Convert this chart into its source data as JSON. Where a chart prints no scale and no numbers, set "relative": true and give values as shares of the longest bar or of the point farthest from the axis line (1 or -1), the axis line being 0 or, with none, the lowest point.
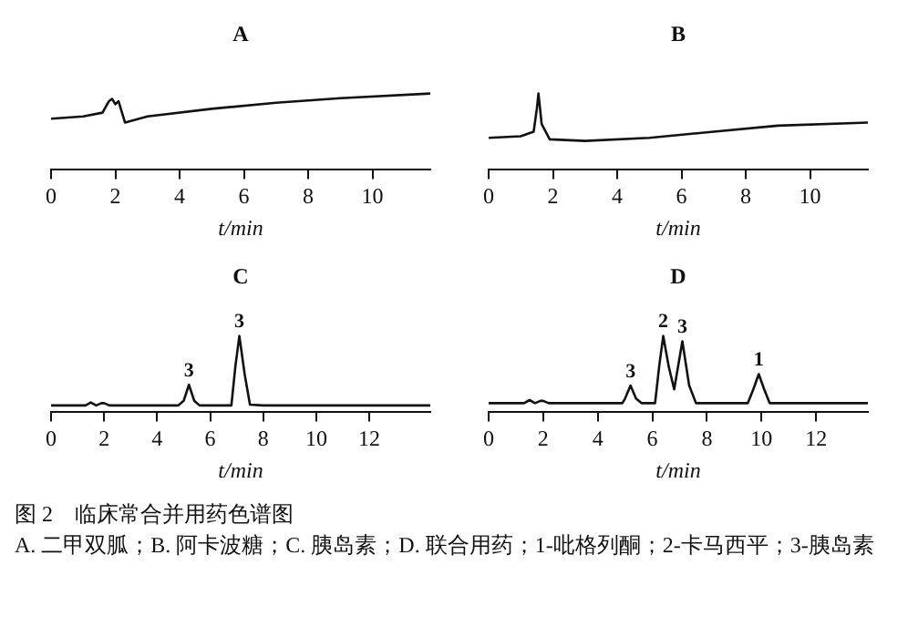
{
  "chart_data": [
    {
      "type": "line",
      "title": "A",
      "xlabel": "t/min",
      "relative": true,
      "marker": "none",
      "grid": false,
      "legend": false,
      "tick_labels": "x",
      "xlim": [
        0,
        11.8
      ],
      "xticks": [
        0,
        2,
        4,
        6,
        8,
        10
      ],
      "series": [
        {
          "color": "#111111",
          "x": [
            0,
            1.0,
            1.6,
            1.8,
            1.9,
            2.0,
            2.1,
            2.3,
            3.0,
            5.0,
            7.0,
            9.0,
            11.8
          ],
          "values": [
            0.67,
            0.7,
            0.75,
            0.9,
            0.93,
            0.86,
            0.9,
            0.62,
            0.7,
            0.8,
            0.88,
            0.94,
            1.0
          ]
        }
      ]
    },
    {
      "type": "line",
      "title": "B",
      "xlabel": "t/min",
      "relative": true,
      "marker": "none",
      "grid": false,
      "legend": false,
      "tick_labels": "x",
      "xlim": [
        0,
        11.8
      ],
      "xticks": [
        0,
        2,
        4,
        6,
        8,
        10
      ],
      "series": [
        {
          "color": "#111111",
          "x": [
            0,
            1.0,
            1.4,
            1.5,
            1.55,
            1.65,
            1.9,
            3.0,
            5.0,
            7.0,
            9.0,
            11.8
          ],
          "values": [
            0.42,
            0.44,
            0.5,
            0.8,
            1.0,
            0.6,
            0.4,
            0.38,
            0.42,
            0.5,
            0.58,
            0.62
          ]
        }
      ]
    },
    {
      "type": "line",
      "title": "C",
      "xlabel": "t/min",
      "relative": true,
      "marker": "none",
      "grid": false,
      "legend": false,
      "tick_labels": "x",
      "xlim": [
        0,
        14.3
      ],
      "xticks": [
        0,
        2,
        4,
        6,
        8,
        10,
        12
      ],
      "annotations": [
        {
          "text": "3",
          "x": 5.2,
          "y": 0.36
        },
        {
          "text": "3",
          "x": 7.1,
          "y": 1
        }
      ],
      "series": [
        {
          "color": "#111111",
          "x": [
            0,
            1.3,
            1.5,
            1.7,
            1.9,
            2.0,
            2.2,
            4.8,
            5.0,
            5.2,
            5.4,
            5.6,
            6.8,
            6.95,
            7.1,
            7.3,
            7.5,
            8.0,
            14.3
          ],
          "values": [
            0.09,
            0.09,
            0.13,
            0.09,
            0.12,
            0.12,
            0.09,
            0.09,
            0.15,
            0.36,
            0.15,
            0.09,
            0.09,
            0.6,
            1.0,
            0.5,
            0.1,
            0.09,
            0.09
          ]
        }
      ]
    },
    {
      "type": "line",
      "title": "D",
      "xlabel": "t/min",
      "relative": true,
      "marker": "none",
      "grid": false,
      "legend": false,
      "tick_labels": "x",
      "xlim": [
        0,
        13.9
      ],
      "xticks": [
        0,
        2,
        4,
        6,
        8,
        10,
        12
      ],
      "annotations": [
        {
          "text": "3",
          "x": 5.2,
          "y": 0.35
        },
        {
          "text": "2",
          "x": 6.4,
          "y": 1
        },
        {
          "text": "3",
          "x": 7.1,
          "y": 0.93
        },
        {
          "text": "1",
          "x": 9.9,
          "y": 0.5
        },
        "图 2　临床常合并用药色谱图",
        "A. 二甲双胍；B. 阿卡波糖；C. 胰岛素；D. 联合用药；1-吡格列酮；2-卡马西平；3-胰岛素"
      ],
      "series": [
        {
          "color": "#111111",
          "x": [
            0,
            1.3,
            1.5,
            1.7,
            1.9,
            2.0,
            2.2,
            4.9,
            5.0,
            5.2,
            5.4,
            5.6,
            6.1,
            6.25,
            6.4,
            6.6,
            6.8,
            7.1,
            7.35,
            7.6,
            9.5,
            9.7,
            9.9,
            10.1,
            10.3,
            13.9
          ],
          "values": [
            0.12,
            0.12,
            0.16,
            0.12,
            0.15,
            0.15,
            0.12,
            0.12,
            0.18,
            0.35,
            0.18,
            0.12,
            0.12,
            0.6,
            1.0,
            0.6,
            0.3,
            0.93,
            0.35,
            0.12,
            0.12,
            0.3,
            0.5,
            0.3,
            0.12,
            0.12
          ]
        }
      ]
    }
  ]
}
